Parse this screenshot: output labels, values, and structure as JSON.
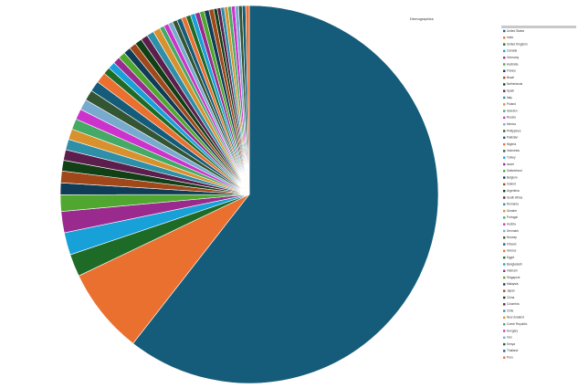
{
  "chart_data": {
    "type": "pie",
    "title": "Demographics",
    "categories": [
      "United States",
      "India",
      "United Kingdom",
      "Canada",
      "Germany",
      "Australia",
      "France",
      "Brazil",
      "Netherlands",
      "Spain",
      "Italy",
      "Poland",
      "Sweden",
      "Russia",
      "Mexico",
      "Philippines",
      "Pakistan",
      "Nigeria",
      "Indonesia",
      "Turkey",
      "Israel",
      "Switzerland",
      "Belgium",
      "Ireland",
      "Argentina",
      "South Africa",
      "Romania",
      "Ukraine",
      "Portugal",
      "Austria",
      "Denmark",
      "Norway",
      "Finland",
      "Greece",
      "Egypt",
      "Bangladesh",
      "Vietnam",
      "Singapore",
      "Malaysia",
      "Japan",
      "China",
      "Colombia",
      "Chile",
      "New Zealand",
      "Czech Republic",
      "Hungary",
      "Iran",
      "Kenya",
      "Thailand",
      "Peru"
    ],
    "values": [
      60,
      7.3,
      1.9,
      1.9,
      1.8,
      1.4,
      1.0,
      1.0,
      0.9,
      0.9,
      0.9,
      0.9,
      0.9,
      0.9,
      0.9,
      0.9,
      0.9,
      0.9,
      0.6,
      0.6,
      0.6,
      0.6,
      0.6,
      0.6,
      0.6,
      0.6,
      0.6,
      0.6,
      0.4,
      0.4,
      0.4,
      0.4,
      0.4,
      0.4,
      0.4,
      0.4,
      0.4,
      0.4,
      0.4,
      0.4,
      0.3,
      0.3,
      0.3,
      0.3,
      0.3,
      0.3,
      0.3,
      0.3,
      0.3,
      0.3
    ],
    "palette": [
      "#155c7a",
      "#ea7030",
      "#1e6b27",
      "#17a1d8",
      "#9b2a8f",
      "#4fa72f",
      "#0f3c57",
      "#a0481a",
      "#113f16",
      "#5c1f4d",
      "#2e8fa8",
      "#d9912e",
      "#44aa66",
      "#cc33cc",
      "#77aacc",
      "#335533"
    ],
    "legend": "right"
  }
}
